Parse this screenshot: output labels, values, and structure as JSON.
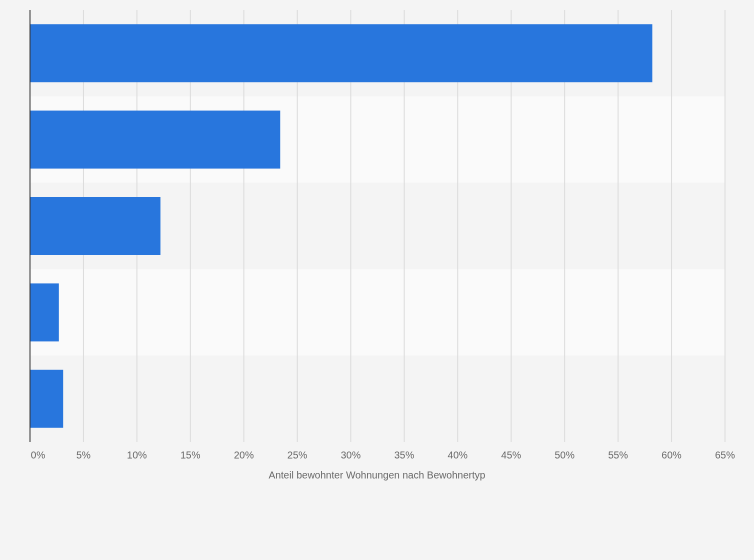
{
  "chart_data": {
    "type": "barh",
    "x_label": "Anteil bewohnter Wohnungen nach Bewohnertyp",
    "categories": [
      null,
      null,
      null,
      null,
      null
    ],
    "values": [
      58.2,
      23.4,
      12.2,
      2.7,
      3.1
    ],
    "color": "#2876dd",
    "xlim": [
      0,
      65
    ],
    "xticks": [
      {
        "value": 0,
        "label": "0%"
      },
      {
        "value": 5,
        "label": "5%"
      },
      {
        "value": 10,
        "label": "10%"
      },
      {
        "value": 15,
        "label": "15%"
      },
      {
        "value": 20,
        "label": "20%"
      },
      {
        "value": 25,
        "label": "25%"
      },
      {
        "value": 30,
        "label": "30%"
      },
      {
        "value": 35,
        "label": "35%"
      },
      {
        "value": 40,
        "label": "40%"
      },
      {
        "value": 45,
        "label": "45%"
      },
      {
        "value": 50,
        "label": "50%"
      },
      {
        "value": 55,
        "label": "55%"
      },
      {
        "value": 60,
        "label": "60%"
      },
      {
        "value": 65,
        "label": "65%"
      }
    ],
    "grid": true
  }
}
